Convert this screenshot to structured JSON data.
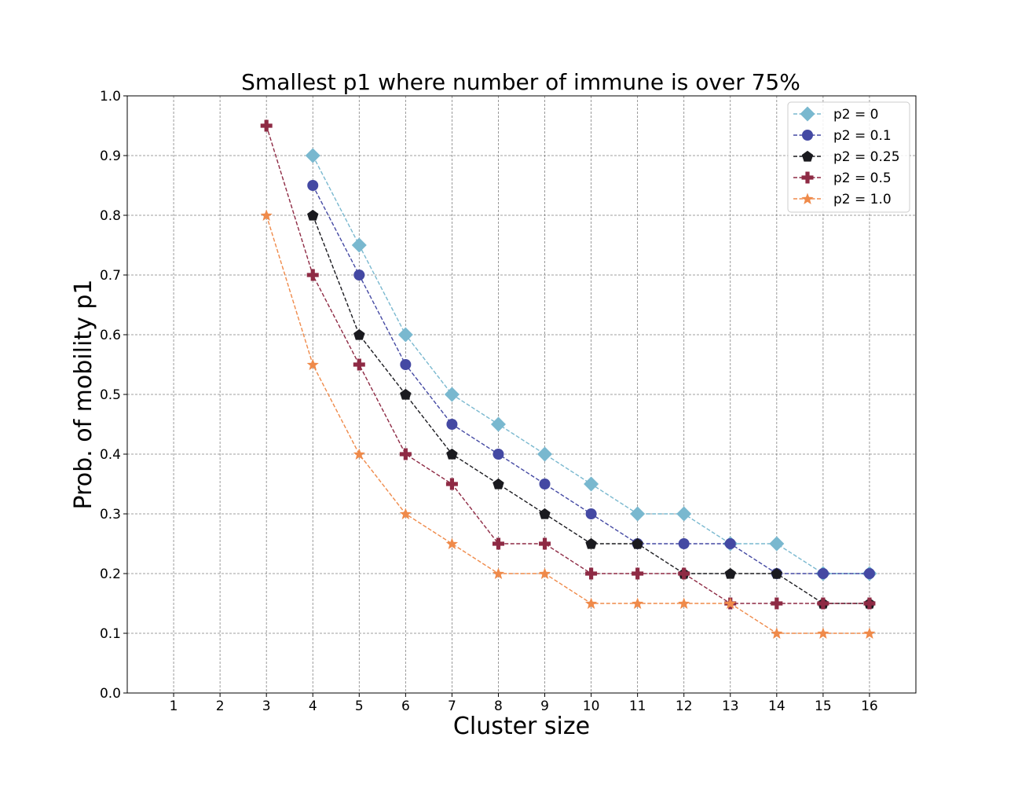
{
  "chart_data": {
    "type": "line",
    "title": "Smallest p1 where number of immune is over 75%",
    "xlabel": "Cluster size",
    "ylabel": "Prob. of mobility p1",
    "xlim": [
      0,
      17
    ],
    "ylim": [
      0.0,
      1.0
    ],
    "x_ticks": [
      "1",
      "2",
      "3",
      "4",
      "5",
      "6",
      "7",
      "8",
      "9",
      "10",
      "11",
      "12",
      "13",
      "14",
      "15",
      "16"
    ],
    "y_ticks": [
      "0.0",
      "0.1",
      "0.2",
      "0.3",
      "0.4",
      "0.5",
      "0.6",
      "0.7",
      "0.8",
      "0.9",
      "1.0"
    ],
    "grid": true,
    "legend_position": "top-right",
    "series": [
      {
        "name": "p2 = 0",
        "color": "#79b8cf",
        "marker": "diamond",
        "x": [
          4,
          5,
          6,
          7,
          8,
          9,
          10,
          11,
          12,
          13,
          14,
          15,
          16
        ],
        "y": [
          0.9,
          0.75,
          0.6,
          0.5,
          0.45,
          0.4,
          0.35,
          0.3,
          0.3,
          0.25,
          0.25,
          0.2,
          0.2
        ]
      },
      {
        "name": "p2 = 0.1",
        "color": "#4449a3",
        "marker": "circle",
        "x": [
          4,
          5,
          6,
          7,
          8,
          9,
          10,
          11,
          12,
          13,
          14,
          15,
          16
        ],
        "y": [
          0.85,
          0.7,
          0.55,
          0.45,
          0.4,
          0.35,
          0.3,
          0.25,
          0.25,
          0.25,
          0.2,
          0.2,
          0.2
        ]
      },
      {
        "name": "p2 = 0.25",
        "color": "#1a1a1f",
        "marker": "pentagon",
        "x": [
          4,
          5,
          6,
          7,
          8,
          9,
          10,
          11,
          12,
          13,
          14,
          15,
          16
        ],
        "y": [
          0.8,
          0.6,
          0.5,
          0.4,
          0.35,
          0.3,
          0.25,
          0.25,
          0.2,
          0.2,
          0.2,
          0.15,
          0.15
        ]
      },
      {
        "name": "p2 = 0.5",
        "color": "#8e2a44",
        "marker": "plus",
        "x": [
          3,
          4,
          5,
          6,
          7,
          8,
          9,
          10,
          11,
          12,
          13,
          14,
          15,
          16
        ],
        "y": [
          0.95,
          0.7,
          0.55,
          0.4,
          0.35,
          0.25,
          0.25,
          0.2,
          0.2,
          0.2,
          0.15,
          0.15,
          0.15,
          0.15
        ]
      },
      {
        "name": "p2 = 1.0",
        "color": "#ef8a4a",
        "marker": "star",
        "x": [
          3,
          4,
          5,
          6,
          7,
          8,
          9,
          10,
          11,
          12,
          13,
          14,
          15,
          16
        ],
        "y": [
          0.8,
          0.55,
          0.4,
          0.3,
          0.25,
          0.2,
          0.2,
          0.15,
          0.15,
          0.15,
          0.15,
          0.1,
          0.1,
          0.1
        ]
      }
    ]
  }
}
